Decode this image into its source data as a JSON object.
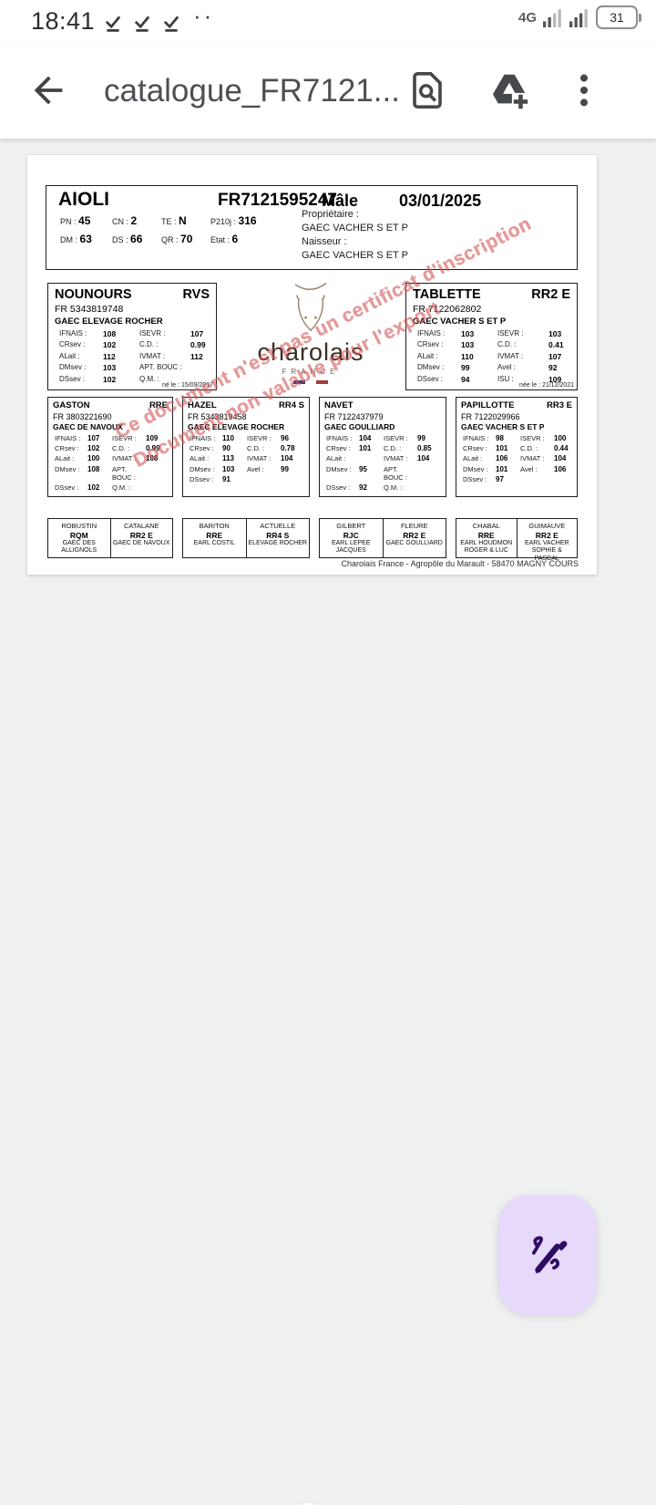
{
  "colors": {
    "watermark": "#d45a5a",
    "fab_bg": "#e6d9f9",
    "fab_icon": "#2d0b63",
    "appbar_icon": "#45484c"
  },
  "status_bar": {
    "time": "18:41",
    "notification_dots": "··",
    "network": "4G",
    "battery_percent": "31"
  },
  "app_bar": {
    "title": "catalogue_FR7121..."
  },
  "document": {
    "watermark_line1": "Ce document n'est pas un certificat d'inscription",
    "watermark_line2": "Document non valable pour l'export",
    "footer": "Charolais France - Agropôle du Marault - 58470 MAGNY COURS",
    "logo": {
      "word": "charolais",
      "subtitle": "FRANCE"
    },
    "main": {
      "name": "AIOLI",
      "id": "FR7121595247",
      "sex": "Mâle",
      "birth_date": "03/01/2025",
      "stats": [
        {
          "label": "PN :",
          "value": "45"
        },
        {
          "label": "CN :",
          "value": "2"
        },
        {
          "label": "TE :",
          "value": "N"
        },
        {
          "label": "P210j :",
          "value": "316"
        },
        {
          "label": "DM :",
          "value": "63"
        },
        {
          "label": "DS :",
          "value": "66"
        },
        {
          "label": "QR :",
          "value": "70"
        },
        {
          "label": "Etat :",
          "value": "6"
        }
      ],
      "owner_label": "Propriétaire :",
      "owner": "GAEC VACHER S ET P",
      "breeder_label": "Naisseur :",
      "breeder": "GAEC VACHER S ET P"
    },
    "parents": [
      {
        "name": "NOUNOURS",
        "code": "RVS",
        "fr": "FR  5343819748",
        "breeder": "GAEC ELEVAGE ROCHER",
        "rows": [
          [
            "IFNAIS :",
            "108",
            "ISEVR :",
            "107"
          ],
          [
            "CRsev :",
            "102",
            "C.D. :",
            "0.99"
          ],
          [
            "ALait :",
            "112",
            "IVMAT :",
            "112"
          ],
          [
            "DMsev :",
            "103",
            "APT. BOUC :",
            ""
          ],
          [
            "DSsev :",
            "102",
            "Q.M. :",
            ""
          ]
        ],
        "born": "né le : 15/09/2017"
      },
      {
        "name": "TABLETTE",
        "code": "RR2 E",
        "fr": "FR  7122062802",
        "breeder": "GAEC VACHER S ET P",
        "rows": [
          [
            "IFNAIS :",
            "103",
            "ISEVR :",
            "103"
          ],
          [
            "CRsev :",
            "103",
            "C.D. :",
            "0.41"
          ],
          [
            "ALait :",
            "110",
            "IVMAT :",
            "107"
          ],
          [
            "DMsev :",
            "99",
            "Avel :",
            "92"
          ],
          [
            "DSsev :",
            "94",
            "ISU :",
            "109"
          ]
        ],
        "born": "née le : 21/12/2021"
      }
    ],
    "grandparents": [
      {
        "name": "GASTON",
        "code": "RRE",
        "fr": "FR  3803221690",
        "breeder": "GAEC DE NAVOUX",
        "rows": [
          [
            "IFNAIS :",
            "107",
            "ISEVR :",
            "109"
          ],
          [
            "CRsev :",
            "102",
            "C.D. :",
            "0.99"
          ],
          [
            "ALait :",
            "100",
            "IVMAT :",
            "108"
          ],
          [
            "DMsev :",
            "108",
            "APT. BOUC :",
            ""
          ],
          [
            "DSsev :",
            "102",
            "Q.M. :",
            ""
          ]
        ]
      },
      {
        "name": "HAZEL",
        "code": "RR4 S",
        "fr": "FR  5343819458",
        "breeder": "GAEC ELEVAGE ROCHER",
        "rows": [
          [
            "IFNAIS :",
            "110",
            "ISEVR :",
            "96"
          ],
          [
            "CRsev :",
            "90",
            "C.D. :",
            "0.78"
          ],
          [
            "ALait :",
            "113",
            "IVMAT :",
            "104"
          ],
          [
            "DMsev :",
            "103",
            "Avel :",
            "99"
          ],
          [
            "DSsev :",
            "91",
            "",
            ""
          ]
        ]
      },
      {
        "name": "NAVET",
        "code": "",
        "fr": "FR  7122437979",
        "breeder": "GAEC GOULLIARD",
        "rows": [
          [
            "IFNAIS :",
            "104",
            "ISEVR :",
            "99"
          ],
          [
            "CRsev :",
            "101",
            "C.D. :",
            "0.85"
          ],
          [
            "ALait :",
            "",
            "IVMAT :",
            "104"
          ],
          [
            "DMsev :",
            "95",
            "APT. BOUC :",
            ""
          ],
          [
            "DSsev :",
            "92",
            "Q.M. :",
            ""
          ]
        ]
      },
      {
        "name": "PAPILLOTTE",
        "code": "RR3 E",
        "fr": "FR  7122029966",
        "breeder": "GAEC VACHER S ET P",
        "rows": [
          [
            "IFNAIS :",
            "98",
            "ISEVR :",
            "100"
          ],
          [
            "CRsev :",
            "101",
            "C.D. :",
            "0.44"
          ],
          [
            "ALait :",
            "106",
            "IVMAT :",
            "104"
          ],
          [
            "DMsev :",
            "101",
            "Avel :",
            "106"
          ],
          [
            "DSsev :",
            "97",
            "",
            ""
          ]
        ]
      }
    ],
    "great_grandparents": [
      {
        "name": "ROBUSTIN",
        "code": "RQM",
        "breeder": "GAEC DES ALLIGNOLS"
      },
      {
        "name": "CATALANE",
        "code": "RR2 E",
        "breeder": "GAEC DE NAVOUX"
      },
      {
        "name": "BARITON",
        "code": "RRE",
        "breeder": "EARL COSTIL"
      },
      {
        "name": "ACTUELLE",
        "code": "RR4 S",
        "breeder": "ELEVAGE ROCHER"
      },
      {
        "name": "GILBERT",
        "code": "RJC",
        "breeder": "EARL LEPEE JACQUES"
      },
      {
        "name": "FLEURE",
        "code": "RR2 E",
        "breeder": "GAEC GOULLIARD"
      },
      {
        "name": "CHABAL",
        "code": "RRE",
        "breeder": "EARL HOUDMON ROGER & LUC"
      },
      {
        "name": "GUIMAUVE",
        "code": "RR2 E",
        "breeder": "EARL VACHER SOPHIE & PASCAL"
      }
    ]
  }
}
